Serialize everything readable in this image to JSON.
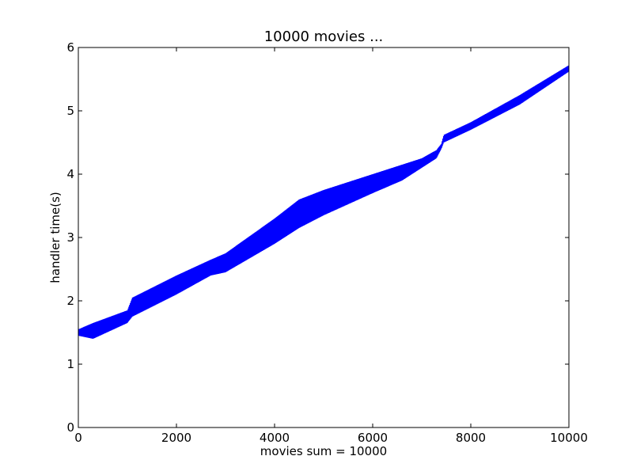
{
  "chart_data": {
    "type": "line",
    "title": "10000 movies ...",
    "xlabel": "movies sum = 10000",
    "ylabel": "handler time(s)",
    "xlim": [
      0,
      10000
    ],
    "ylim": [
      0,
      6
    ],
    "x_ticks": [
      "0",
      "2000",
      "4000",
      "6000",
      "8000",
      "10000"
    ],
    "y_ticks": [
      "0",
      "1",
      "2",
      "3",
      "4",
      "5",
      "6"
    ],
    "grid": false,
    "series": [
      {
        "color": "#0000ff",
        "x": [
          0,
          300,
          1000,
          1100,
          2000,
          2700,
          3000,
          4000,
          4500,
          5000,
          6000,
          6600,
          7000,
          7300,
          7400,
          7450,
          8000,
          9000,
          10000
        ],
        "y_upper": [
          1.55,
          1.65,
          1.85,
          2.05,
          2.4,
          2.65,
          2.75,
          3.3,
          3.6,
          3.75,
          4.0,
          4.15,
          4.25,
          4.38,
          4.48,
          4.62,
          4.82,
          5.25,
          5.72
        ],
        "y_lower": [
          1.45,
          1.4,
          1.65,
          1.75,
          2.1,
          2.4,
          2.45,
          2.9,
          3.15,
          3.35,
          3.7,
          3.9,
          4.1,
          4.25,
          4.4,
          4.5,
          4.7,
          5.1,
          5.62
        ]
      }
    ]
  },
  "colors": {
    "line": "#0000ff",
    "axes": "#000000",
    "background": "#ffffff"
  }
}
